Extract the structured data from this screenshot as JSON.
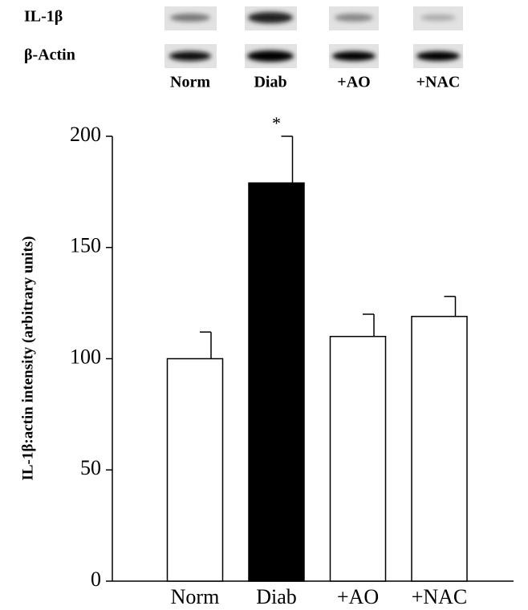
{
  "blot": {
    "rows": [
      "IL-1β",
      "β-Actin"
    ],
    "lanes": [
      "Norm",
      "Diab",
      "+AO",
      "+NAC"
    ]
  },
  "chart_data": {
    "type": "bar",
    "y_label": "IL-1β:actin intensity (arbitrary units)",
    "categories": [
      "Norm",
      "Diab",
      "+AO",
      "+NAC"
    ],
    "values": [
      100,
      179,
      110,
      119
    ],
    "errors": [
      12,
      21,
      10,
      9
    ],
    "colors": [
      "#ffffff",
      "#000000",
      "#ffffff",
      "#ffffff"
    ],
    "annotations": [
      {
        "text": "*",
        "category": "Diab"
      }
    ],
    "ylim": [
      0,
      200
    ],
    "yticks": [
      0,
      50,
      100,
      150,
      200
    ]
  }
}
